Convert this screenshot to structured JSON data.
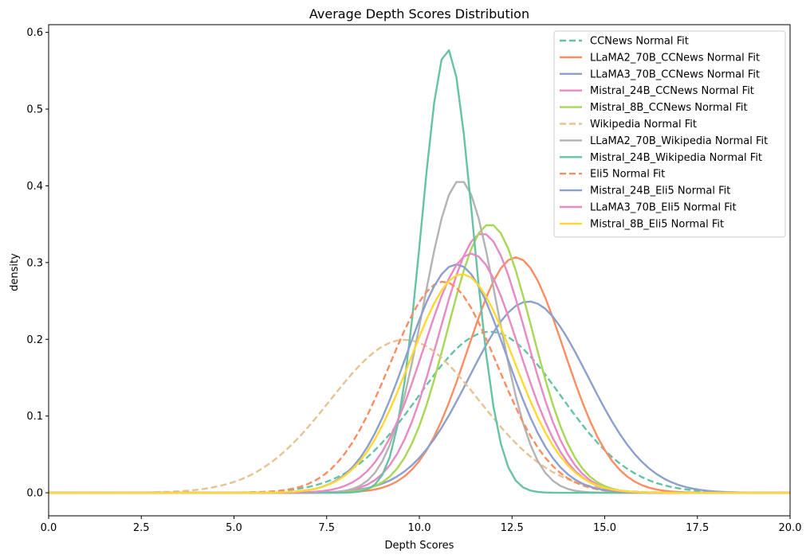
{
  "chart_data": {
    "type": "line",
    "title": "Average Depth Scores Distribution",
    "xlabel": "Depth Scores",
    "ylabel": "density",
    "xlim": [
      0,
      20
    ],
    "ylim": [
      -0.03,
      0.61
    ],
    "xticks": [
      0,
      2.5,
      5,
      7.5,
      10,
      12.5,
      15,
      17.5,
      20
    ],
    "xtick_labels": [
      "0.0",
      "2.5",
      "5.0",
      "7.5",
      "10.0",
      "12.5",
      "15.0",
      "17.5",
      "20.0"
    ],
    "yticks": [
      0,
      0.1,
      0.2,
      0.3,
      0.4,
      0.5,
      0.6
    ],
    "ytick_labels": [
      "0.0",
      "0.1",
      "0.2",
      "0.3",
      "0.4",
      "0.5",
      "0.6"
    ],
    "grid": false,
    "legend_position": "top-right",
    "series_kind": "normal-fit curves (mean, std)",
    "series": [
      {
        "name": "CCNews Normal Fit",
        "color": "#66c2a5",
        "dashed": true,
        "mean": 11.9,
        "std": 1.9
      },
      {
        "name": "LLaMA2_70B_CCNews Normal Fit",
        "color": "#fc8d62",
        "dashed": false,
        "mean": 12.6,
        "std": 1.3
      },
      {
        "name": "LLaMA3_70B_CCNews Normal Fit",
        "color": "#8da0cb",
        "dashed": false,
        "mean": 12.95,
        "std": 1.6
      },
      {
        "name": "Mistral_24B_CCNews Normal Fit",
        "color": "#e78ac3",
        "dashed": false,
        "mean": 11.7,
        "std": 1.18
      },
      {
        "name": "Mistral_8B_CCNews Normal Fit",
        "color": "#a6d854",
        "dashed": false,
        "mean": 11.9,
        "std": 1.14
      },
      {
        "name": "Wikipedia Normal Fit",
        "color": "#e5c494",
        "dashed": true,
        "mean": 9.6,
        "std": 2.0
      },
      {
        "name": "LLaMA2_70B_Wikipedia Normal Fit",
        "color": "#b3b3b3",
        "dashed": false,
        "mean": 11.1,
        "std": 0.98
      },
      {
        "name": "Mistral_24B_Wikipedia Normal Fit",
        "color": "#66c2a5",
        "dashed": false,
        "mean": 10.75,
        "std": 0.69
      },
      {
        "name": "Eli5 Normal Fit",
        "color": "#fc8d62",
        "dashed": true,
        "mean": 10.65,
        "std": 1.45
      },
      {
        "name": "Mistral_24B_Eli5 Normal Fit",
        "color": "#8da0cb",
        "dashed": false,
        "mean": 11.0,
        "std": 1.34
      },
      {
        "name": "LLaMA3_70B_Eli5 Normal Fit",
        "color": "#e78ac3",
        "dashed": false,
        "mean": 11.4,
        "std": 1.28
      },
      {
        "name": "Mistral_8B_Eli5 Normal Fit",
        "color": "#ffd92f",
        "dashed": false,
        "mean": 11.15,
        "std": 1.4
      }
    ]
  }
}
